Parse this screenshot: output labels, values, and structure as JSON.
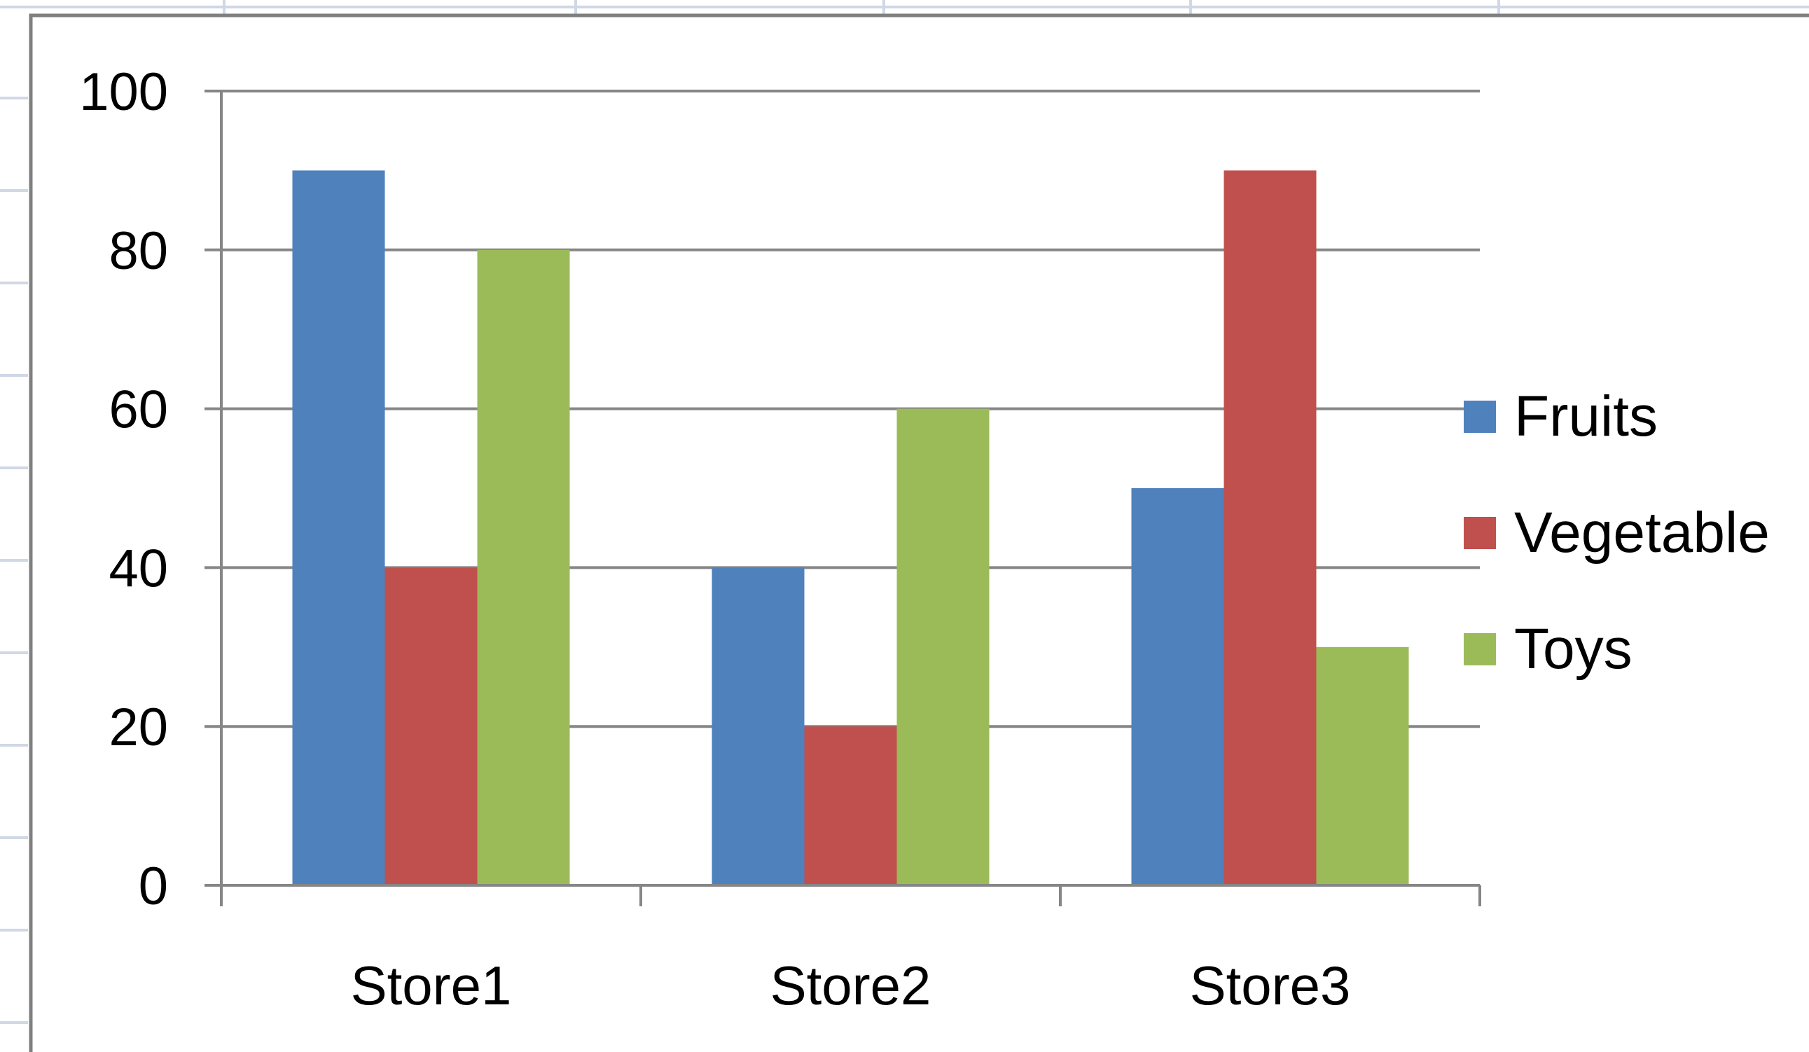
{
  "chart_data": {
    "type": "bar",
    "title": "",
    "xlabel": "",
    "ylabel": "",
    "categories": [
      "Store1",
      "Store2",
      "Store3"
    ],
    "series": [
      {
        "name": "Fruits",
        "color": "#4F81BD",
        "values": [
          90,
          40,
          50
        ]
      },
      {
        "name": "Vegetable",
        "color": "#C0504D",
        "values": [
          40,
          20,
          90
        ]
      },
      {
        "name": "Toys",
        "color": "#9BBB59",
        "values": [
          80,
          60,
          30
        ]
      }
    ],
    "ylim": [
      0,
      100
    ],
    "yticks": [
      "0",
      "20",
      "40",
      "60",
      "80",
      "100"
    ],
    "grid": true,
    "legend_position": "right"
  }
}
